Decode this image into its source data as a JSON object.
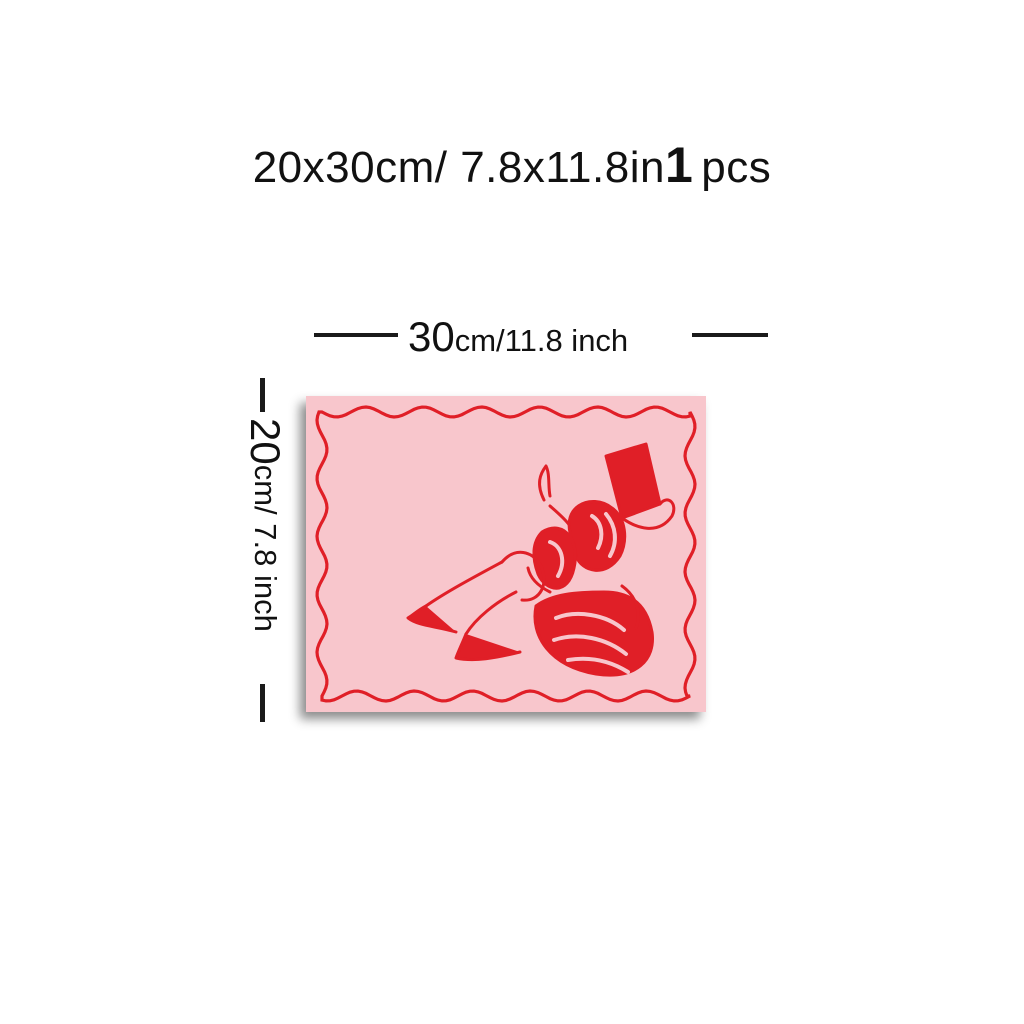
{
  "header": {
    "size_text": "20x30cm/ 7.8x11.8in",
    "quantity_number": "1",
    "quantity_unit": "pcs"
  },
  "width_dimension": {
    "value": "30",
    "unit": "cm/11.8 inch"
  },
  "height_dimension": {
    "value": "20",
    "unit": "cm/ 7.8 inch"
  },
  "poster": {
    "background_color": "#f8c6cc",
    "ink_color": "#e01f27",
    "illustration": "woman-reading-book-illustration"
  }
}
